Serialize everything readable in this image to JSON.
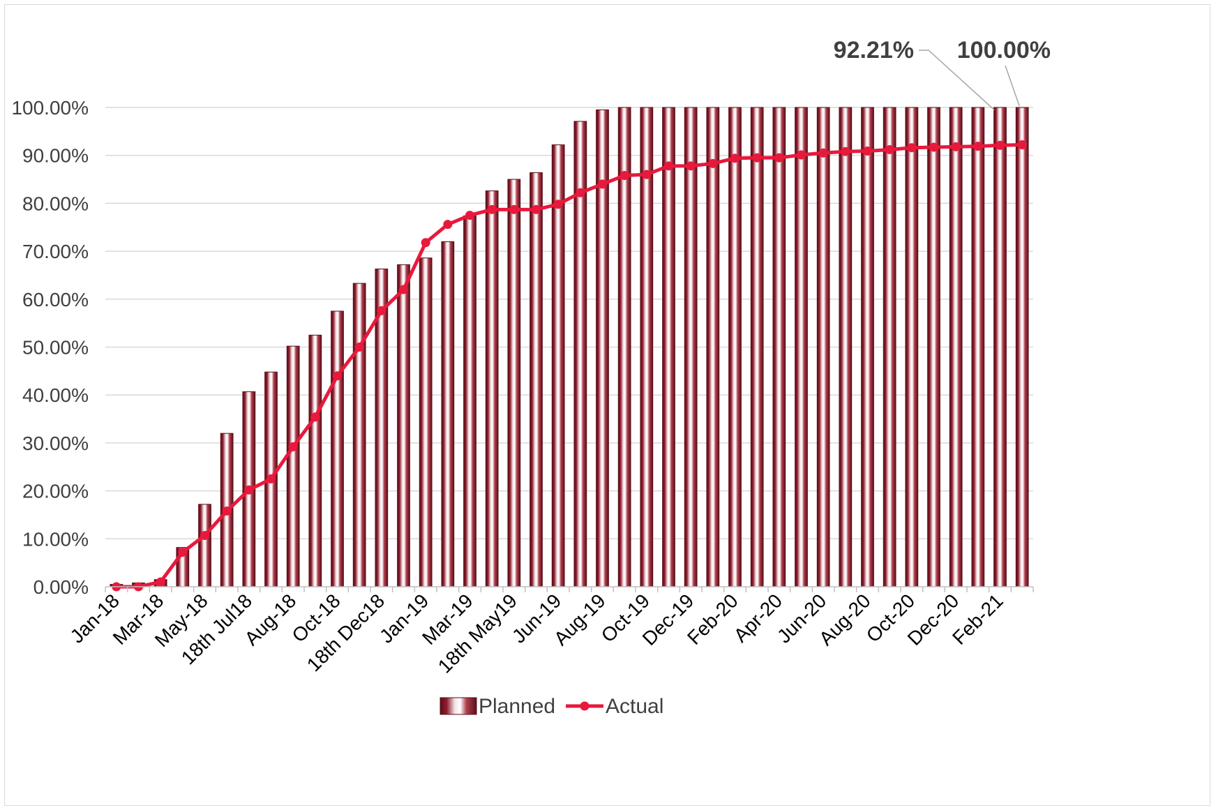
{
  "chart_data": {
    "type": "bar",
    "title": "",
    "xlabel": "",
    "ylabel": "",
    "ylim": [
      0,
      100
    ],
    "yticks": [
      "0.00%",
      "10.00%",
      "20.00%",
      "30.00%",
      "40.00%",
      "50.00%",
      "60.00%",
      "70.00%",
      "80.00%",
      "90.00%",
      "100.00%"
    ],
    "x_tick_labels": [
      "Jan-18",
      "Mar-18",
      "May-18",
      "18th Jul18",
      "Aug-18",
      "Oct-18",
      "18th Dec18",
      "Jan-19",
      "Mar-19",
      "18th May19",
      "Jun-19",
      "Aug-19",
      "Oct-19",
      "Dec-19",
      "Feb-20",
      "Apr-20",
      "Jun-20",
      "Aug-20",
      "Oct-20",
      "Dec-20",
      "Feb-21"
    ],
    "grid": true,
    "legend_position": "bottom",
    "series": [
      {
        "name": "Planned",
        "type": "bar",
        "color": "#8b1a2b",
        "values": [
          0.5,
          0.8,
          1.5,
          8.2,
          17.2,
          32.0,
          40.7,
          44.8,
          50.2,
          52.5,
          57.5,
          63.3,
          66.3,
          67.2,
          68.6,
          72.0,
          77.4,
          82.6,
          85.0,
          86.4,
          92.2,
          97.1,
          99.5,
          100,
          100,
          100,
          100,
          100,
          100,
          100,
          100,
          100,
          100,
          100,
          100,
          100,
          100,
          100,
          100,
          100,
          100,
          100
        ]
      },
      {
        "name": "Actual",
        "type": "line",
        "color": "#e8193c",
        "values": [
          0.0,
          0.0,
          1.0,
          7.2,
          10.7,
          15.8,
          20.2,
          22.5,
          29.2,
          35.4,
          44.0,
          50.0,
          57.6,
          62.0,
          71.8,
          75.6,
          77.5,
          78.7,
          78.7,
          78.7,
          79.8,
          82.2,
          84.0,
          85.8,
          86.0,
          87.8,
          87.8,
          88.3,
          89.4,
          89.5,
          89.5,
          90.1,
          90.5,
          90.8,
          90.9,
          91.2,
          91.6,
          91.7,
          91.8,
          91.9,
          92.1,
          92.21
        ]
      }
    ],
    "annotations": [
      {
        "text": "92.21%",
        "series": "Actual"
      },
      {
        "text": "100.00%",
        "series": "Planned"
      }
    ]
  }
}
